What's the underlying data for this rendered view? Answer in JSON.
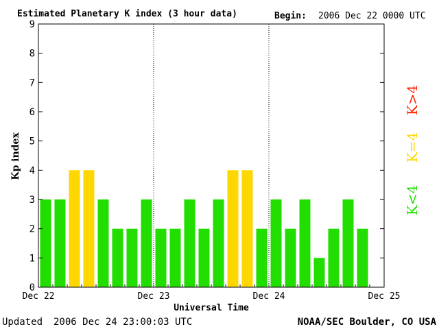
{
  "chart_data": {
    "type": "bar",
    "title": "Estimated Planetary K index (3 hour data)",
    "begin_label": "Begin:",
    "begin_value": "2006 Dec 22 0000 UTC",
    "xlabel": "Universal Time",
    "ylabel": "Kp index",
    "ylim": [
      0,
      9
    ],
    "yticks": [
      "0",
      "1",
      "2",
      "3",
      "4",
      "5",
      "6",
      "7",
      "8",
      "9"
    ],
    "xlim": [
      0,
      72
    ],
    "xticks": [
      {
        "label": "Dec 22",
        "hour": 0
      },
      {
        "label": "Dec 23",
        "hour": 24
      },
      {
        "label": "Dec 24",
        "hour": 48
      },
      {
        "label": "Dec 25",
        "hour": 72
      }
    ],
    "day_dividers": [
      24,
      48
    ],
    "bar_hours": 3,
    "values": [
      3,
      3,
      4,
      4,
      3,
      2,
      2,
      3,
      2,
      2,
      3,
      2,
      3,
      4,
      4,
      2,
      3,
      2,
      3,
      1,
      2,
      3,
      2
    ],
    "legend": [
      {
        "label": "K>4",
        "color": "#ff2200"
      },
      {
        "label": "K=4",
        "color": "#ffd700"
      },
      {
        "label": "K<4",
        "color": "#22dd00"
      }
    ],
    "grid": false
  },
  "footer": {
    "updated_label": "Updated",
    "updated_value": "2006 Dec 24 23:00:03 UTC",
    "source": "NOAA/SEC Boulder, CO USA"
  }
}
